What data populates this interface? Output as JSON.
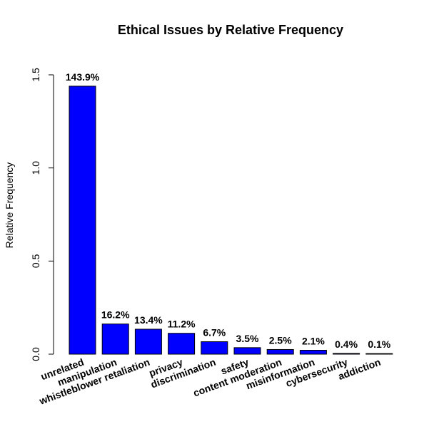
{
  "chart_data": {
    "type": "bar",
    "title": "Ethical Issues by Relative Frequency",
    "xlabel": "",
    "ylabel": "Relative Frequency",
    "ylim": [
      0,
      1.5
    ],
    "yticks": [
      0.0,
      0.5,
      1.0,
      1.5
    ],
    "ytick_labels": [
      "0.0",
      "0.5",
      "1.0",
      "1.5"
    ],
    "categories": [
      "unrelated",
      "manipulation",
      "whistleblower retaliation",
      "privacy",
      "discrimination",
      "safety",
      "content moderation",
      "misinformation",
      "cybersecurity",
      "addiction"
    ],
    "values": [
      1.439,
      0.162,
      0.134,
      0.112,
      0.067,
      0.035,
      0.025,
      0.021,
      0.004,
      0.001
    ],
    "data_labels": [
      "143.9%",
      "16.2%",
      "13.4%",
      "11.2%",
      "6.7%",
      "3.5%",
      "2.5%",
      "2.1%",
      "0.4%",
      "0.1%"
    ],
    "bar_color": "#0000ff",
    "bar_border_color": "#000000",
    "grid": false,
    "legend": "none"
  }
}
